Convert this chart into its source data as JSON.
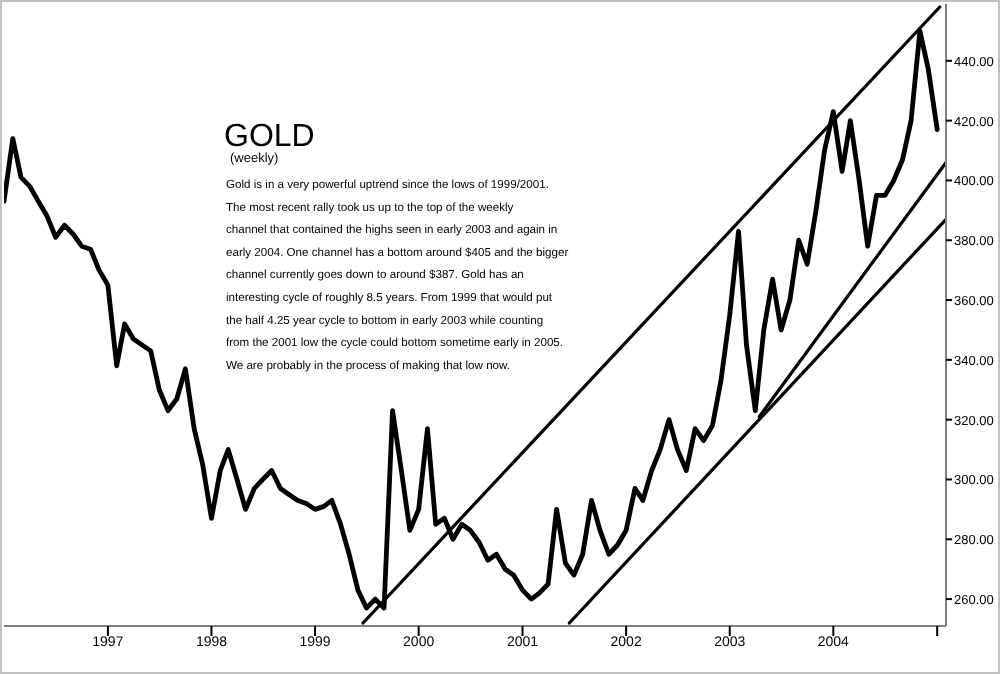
{
  "chart_data": {
    "type": "line",
    "title": "GOLD",
    "subtitle": "(weekly)",
    "annotations": [
      "Gold is in a very powerful uptrend since the lows of 1999/2001. The most recent rally took us up to the top of the weekly channel that contained the highs seen in early 2003 and again in early 2004. One channel has a bottom around $405 and the bigger channel currently goes down to around $387. Gold has an interesting cycle of roughly 8.5 years. From 1999 that would put the half 4.25 year cycle to bottom in early 2003 while counting from the 2001 low the cycle could bottom sometime early in 2005. We are probably in the process of making that low now."
    ],
    "x": [
      "1996-01",
      "1996-02",
      "1996-03",
      "1996-04",
      "1996-05",
      "1996-06",
      "1996-07",
      "1996-08",
      "1996-09",
      "1996-10",
      "1996-11",
      "1996-12",
      "1997-01",
      "1997-02",
      "1997-03",
      "1997-04",
      "1997-05",
      "1997-06",
      "1997-07",
      "1997-08",
      "1997-09",
      "1997-10",
      "1997-11",
      "1997-12",
      "1998-01",
      "1998-02",
      "1998-03",
      "1998-04",
      "1998-05",
      "1998-06",
      "1998-07",
      "1998-08",
      "1998-09",
      "1998-10",
      "1998-11",
      "1998-12",
      "1999-01",
      "1999-02",
      "1999-03",
      "1999-04",
      "1999-05",
      "1999-06",
      "1999-07",
      "1999-08",
      "1999-09",
      "1999-10",
      "1999-11",
      "1999-12",
      "2000-01",
      "2000-02",
      "2000-03",
      "2000-04",
      "2000-05",
      "2000-06",
      "2000-07",
      "2000-08",
      "2000-09",
      "2000-10",
      "2000-11",
      "2000-12",
      "2001-01",
      "2001-02",
      "2001-03",
      "2001-04",
      "2001-05",
      "2001-06",
      "2001-07",
      "2001-08",
      "2001-09",
      "2001-10",
      "2001-11",
      "2001-12",
      "2002-01",
      "2002-02",
      "2002-03",
      "2002-04",
      "2002-05",
      "2002-06",
      "2002-07",
      "2002-08",
      "2002-09",
      "2002-10",
      "2002-11",
      "2002-12",
      "2003-01",
      "2003-02",
      "2003-03",
      "2003-04",
      "2003-05",
      "2003-06",
      "2003-07",
      "2003-08",
      "2003-09",
      "2003-10",
      "2003-11",
      "2003-12",
      "2004-01",
      "2004-02",
      "2004-03",
      "2004-04",
      "2004-05",
      "2004-06",
      "2004-07",
      "2004-08",
      "2004-09",
      "2004-10",
      "2004-11",
      "2004-12",
      "2005-01"
    ],
    "series": [
      {
        "color": "#000000",
        "values": [
          393,
          414,
          401,
          398,
          393,
          388,
          381,
          385,
          382,
          378,
          377,
          370,
          365,
          338,
          352,
          347,
          345,
          343,
          330,
          323,
          327,
          337,
          317,
          305,
          287,
          303,
          310,
          300,
          290,
          297,
          300,
          303,
          297,
          295,
          293,
          292,
          290,
          291,
          293,
          285,
          275,
          263,
          257,
          260,
          257,
          323,
          303,
          283,
          290,
          317,
          285,
          287,
          280,
          285,
          283,
          279,
          273,
          275,
          270,
          268,
          263,
          260,
          262,
          265,
          290,
          272,
          268,
          275,
          293,
          283,
          275,
          278,
          283,
          297,
          293,
          303,
          310,
          320,
          310,
          303,
          317,
          313,
          318,
          333,
          355,
          383,
          345,
          323,
          350,
          367,
          350,
          360,
          380,
          372,
          390,
          410,
          423,
          403,
          420,
          400,
          378,
          395,
          395,
          400,
          407,
          420,
          450,
          437,
          417
        ]
      },
      {
        "type": "line",
        "color": "#000000",
        "x": [
          "1999-06-19",
          "2005-01-10"
        ],
        "values": [
          252,
          458
        ]
      },
      {
        "type": "line",
        "color": "#000000",
        "x": [
          "2001-06-15",
          "2005-02-01"
        ],
        "values": [
          252,
          387
        ]
      },
      {
        "type": "line",
        "color": "#000000",
        "x": [
          "2003-04-15",
          "2005-02-01"
        ],
        "values": [
          321,
          406
        ]
      }
    ],
    "xlim": [
      "1996-01-01",
      "2005-02-01"
    ],
    "xticks": [
      {
        "value": "1997-01-01",
        "label": "1997"
      },
      {
        "value": "1998-01-01",
        "label": "1998"
      },
      {
        "value": "1999-01-01",
        "label": "1999"
      },
      {
        "value": "2000-01-01",
        "label": "2000"
      },
      {
        "value": "2001-01-01",
        "label": "2001"
      },
      {
        "value": "2002-01-01",
        "label": "2002"
      },
      {
        "value": "2003-01-01",
        "label": "2003"
      },
      {
        "value": "2004-01-01",
        "label": "2004"
      },
      {
        "value": "2005-01-01",
        "label": null
      }
    ],
    "ylim": [
      251,
      459
    ],
    "yticks": [
      {
        "value": 260,
        "label": "260.00"
      },
      {
        "value": 280,
        "label": "280.00"
      },
      {
        "value": 300,
        "label": "300.00"
      },
      {
        "value": 320,
        "label": "320.00"
      },
      {
        "value": 340,
        "label": "340.00"
      },
      {
        "value": 360,
        "label": "360.00"
      },
      {
        "value": 380,
        "label": "380.00"
      },
      {
        "value": 400,
        "label": "400.00"
      },
      {
        "value": 420,
        "label": "420.00"
      },
      {
        "value": 440,
        "label": "440.00"
      }
    ],
    "grid": false,
    "line_style": "solid",
    "marker": "none"
  }
}
